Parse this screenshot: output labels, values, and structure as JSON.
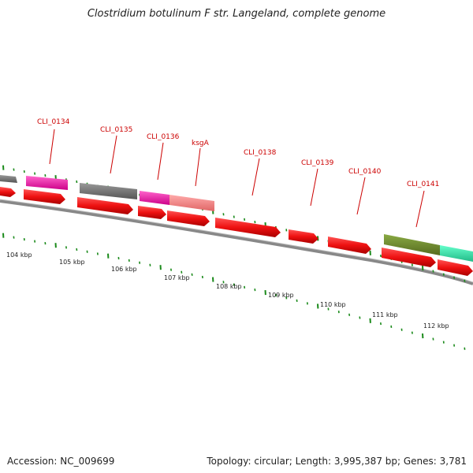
{
  "title": "Clostridium botulinum F str. Langeland, complete genome",
  "footer": {
    "accession": "Accession: NC_009699",
    "stats": "Topology: circular; Length: 3,995,387 bp; Genes: 3,781"
  },
  "colors": {
    "backbone": "#8a8a8a",
    "cds": "#ee1111",
    "gene_label": "#cc0000",
    "tick": "#1a8a1a"
  },
  "gene_labels": [
    "CLI_0134",
    "CLI_0135",
    "CLI_0136",
    "ksgA",
    "CLI_0138",
    "CLI_0139",
    "CLI_0140",
    "CLI_0141"
  ],
  "kbp_labels": [
    "104 kbp",
    "105 kbp",
    "106 kbp",
    "107 kbp",
    "108 kbp",
    "109 kbp",
    "110 kbp",
    "111 kbp",
    "112 kbp"
  ],
  "feature_blocks": [
    {
      "kind": "pink",
      "color": "#ee1199"
    },
    {
      "kind": "gray",
      "color": "#666666"
    },
    {
      "kind": "pink",
      "color": "#ee1199"
    },
    {
      "kind": "salmon",
      "color": "#f08080"
    },
    {
      "kind": "olive",
      "color": "#6b8e23"
    },
    {
      "kind": "teal",
      "color": "#33ddaa"
    }
  ]
}
